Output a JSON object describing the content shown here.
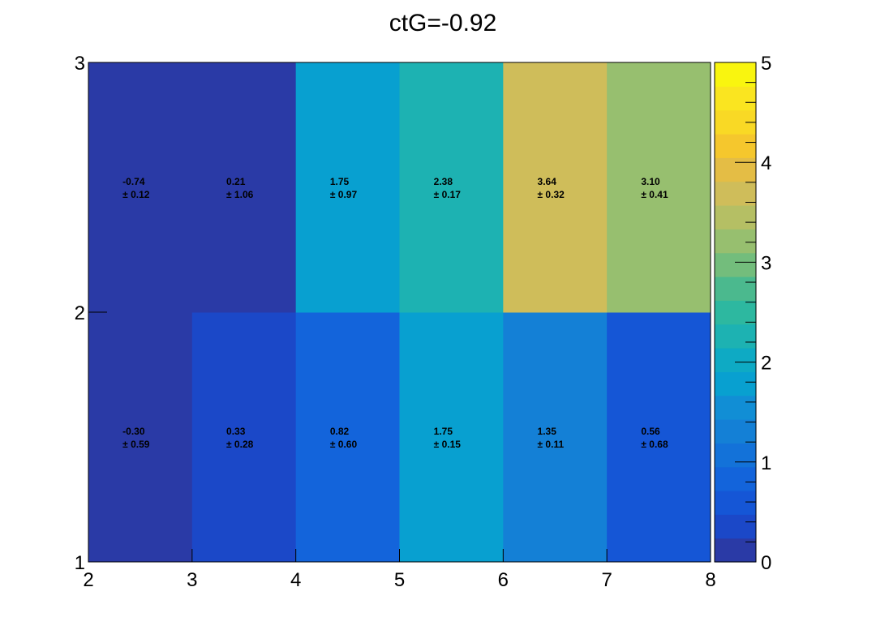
{
  "chart_data": {
    "type": "heatmap",
    "title": "ctG=-0.92",
    "xlabel": "",
    "ylabel": "",
    "x_edges": [
      2,
      3,
      4,
      5,
      6,
      7,
      8
    ],
    "y_edges": [
      1,
      2,
      3
    ],
    "x_ticks": [
      "2",
      "3",
      "4",
      "5",
      "6",
      "7",
      "8"
    ],
    "y_ticks": [
      "1",
      "2",
      "3"
    ],
    "z_range": [
      0,
      5
    ],
    "z_ticks": [
      "0",
      "1",
      "2",
      "3",
      "4",
      "5"
    ],
    "rows": [
      {
        "y_bin": [
          1,
          2
        ],
        "values": [
          -0.3,
          0.33,
          0.82,
          1.75,
          1.35,
          0.56
        ],
        "errors": [
          0.59,
          0.28,
          0.6,
          0.15,
          0.11,
          0.68
        ],
        "value_labels": [
          "-0.30",
          "0.33",
          "0.82",
          "1.75",
          "1.35",
          "0.56"
        ],
        "error_labels": [
          "± 0.59",
          "± 0.28",
          "± 0.60",
          "± 0.15",
          "± 0.11",
          "± 0.68"
        ]
      },
      {
        "y_bin": [
          2,
          3
        ],
        "values": [
          -0.74,
          0.21,
          1.75,
          2.38,
          3.64,
          3.1
        ],
        "errors": [
          0.12,
          1.06,
          0.97,
          0.17,
          0.32,
          0.41
        ],
        "value_labels": [
          "-0.74",
          "0.21",
          "1.75",
          "2.38",
          "3.64",
          "3.10"
        ],
        "error_labels": [
          "± 0.12",
          "± 1.06",
          "± 0.97",
          "± 0.17",
          "± 0.32",
          "± 0.41"
        ]
      }
    ],
    "colorscale": [
      "#2a3aa6",
      "#1b48c8",
      "#1556d6",
      "#1364db",
      "#1372d9",
      "#1480d6",
      "#118ed5",
      "#08a0d0",
      "#0eaac4",
      "#1db2b2",
      "#2db8a0",
      "#4bb98e",
      "#73bd7c",
      "#97bf6f",
      "#b5bf64",
      "#cfbd5a",
      "#e4bd45",
      "#f5c72d",
      "#f9d925",
      "#fae520",
      "#f9f50f"
    ],
    "grid": false,
    "legend": "colorbar-right"
  }
}
